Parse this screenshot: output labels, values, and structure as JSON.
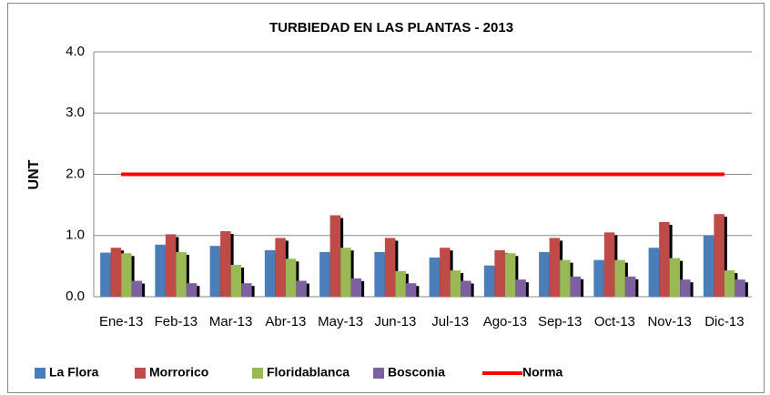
{
  "chart_data": {
    "type": "bar",
    "title": "TURBIEDAD EN LAS PLANTAS - 2013",
    "y_label": "UNT",
    "categories": [
      "Ene-13",
      "Feb-13",
      "Mar-13",
      "Abr-13",
      "May-13",
      "Jun-13",
      "Jul-13",
      "Ago-13",
      "Sep-13",
      "Oct-13",
      "Nov-13",
      "Dic-13"
    ],
    "series": [
      {
        "name": "La Flora",
        "type": "bar",
        "color": "#4a7ebb",
        "values": [
          0.72,
          0.85,
          0.83,
          0.76,
          0.73,
          0.73,
          0.64,
          0.51,
          0.73,
          0.6,
          0.8,
          1.0
        ]
      },
      {
        "name": "Morrorico",
        "type": "bar",
        "color": "#be4b48",
        "values": [
          0.8,
          1.02,
          1.07,
          0.96,
          1.33,
          0.96,
          0.8,
          0.76,
          0.96,
          1.05,
          1.22,
          1.35
        ]
      },
      {
        "name": "Floridablanca",
        "type": "bar",
        "color": "#98b954",
        "values": [
          0.71,
          0.73,
          0.52,
          0.62,
          0.8,
          0.42,
          0.43,
          0.71,
          0.6,
          0.6,
          0.63,
          0.43
        ]
      },
      {
        "name": "Bosconia",
        "type": "bar",
        "color": "#7d60a0",
        "values": [
          0.26,
          0.22,
          0.22,
          0.26,
          0.3,
          0.22,
          0.26,
          0.28,
          0.33,
          0.33,
          0.28,
          0.28
        ]
      },
      {
        "name": "Norma",
        "type": "line",
        "color": "#ff0000",
        "values": [
          2,
          2,
          2,
          2,
          2,
          2,
          2,
          2,
          2,
          2,
          2,
          2
        ]
      }
    ],
    "ylim": [
      0,
      4
    ],
    "yticks": [
      {
        "value": 0,
        "label": "0.0"
      },
      {
        "value": 1,
        "label": "1.0"
      },
      {
        "value": 2,
        "label": "2.0"
      },
      {
        "value": 3,
        "label": "3.0"
      },
      {
        "value": 4,
        "label": "4.0"
      }
    ],
    "grid": true,
    "legend": "bottom"
  }
}
